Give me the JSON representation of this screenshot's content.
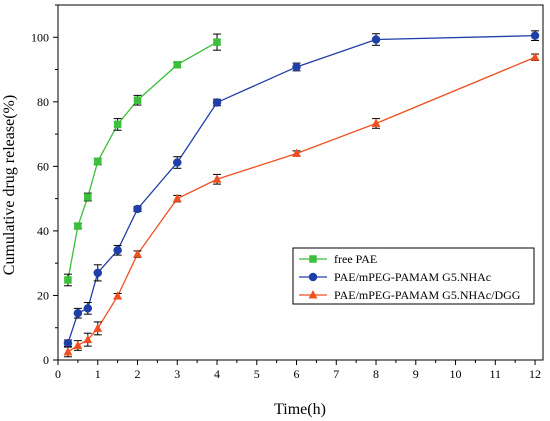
{
  "chart_data": {
    "type": "line",
    "xlabel": "Time(h)",
    "ylabel": "Cumulative drug release(%)",
    "xlim": [
      0,
      12.2
    ],
    "ylim": [
      0,
      110
    ],
    "x_ticks": [
      0,
      1,
      2,
      3,
      4,
      5,
      6,
      7,
      8,
      9,
      10,
      11,
      12
    ],
    "y_ticks": [
      0,
      20,
      40,
      60,
      80,
      100
    ],
    "x_tick_labels": [
      "0",
      "1",
      "2",
      "3",
      "4",
      "5",
      "6",
      "7",
      "8",
      "9",
      "10",
      "11",
      "12"
    ],
    "y_tick_labels": [
      "0",
      "20",
      "40",
      "60",
      "80",
      "100"
    ],
    "grid": false,
    "legend_position": "lower-right",
    "series": [
      {
        "name": "free PAE",
        "color": "#3cbf3c",
        "marker": "square",
        "x": [
          0.25,
          0.5,
          0.75,
          1,
          1.5,
          2,
          3,
          4
        ],
        "y": [
          24.8,
          41.5,
          50.5,
          61.5,
          73.0,
          80.5,
          91.5,
          98.5
        ],
        "err": [
          1.8,
          0.8,
          1.2,
          1.0,
          1.8,
          1.5,
          0.8,
          2.5
        ]
      },
      {
        "name": "PAE/mPEG-PAMAM G5.NHAc",
        "color": "#1f3fa8",
        "marker": "circle",
        "x": [
          0.25,
          0.5,
          0.75,
          1,
          1.5,
          2,
          3,
          4,
          6,
          8,
          12
        ],
        "y": [
          5.2,
          14.5,
          16.0,
          27.0,
          34.0,
          46.8,
          61.2,
          79.8,
          90.8,
          99.3,
          100.5
        ],
        "err": [
          1.0,
          1.5,
          1.8,
          2.5,
          1.5,
          0.8,
          1.8,
          1.0,
          1.2,
          1.8,
          1.5
        ]
      },
      {
        "name": "PAE/mPEG-PAMAM G5.NHAc/DGG",
        "color": "#f05020",
        "marker": "triangle",
        "x": [
          0.25,
          0.5,
          0.75,
          1,
          1.5,
          2,
          3,
          4,
          6,
          8,
          12
        ],
        "y": [
          2.5,
          4.5,
          6.3,
          9.8,
          19.8,
          32.8,
          50.0,
          56.0,
          64.0,
          73.3,
          93.8
        ],
        "err": [
          1.5,
          1.5,
          2.0,
          2.0,
          0.8,
          1.0,
          1.0,
          1.5,
          0.8,
          1.5,
          1.0
        ]
      }
    ]
  }
}
